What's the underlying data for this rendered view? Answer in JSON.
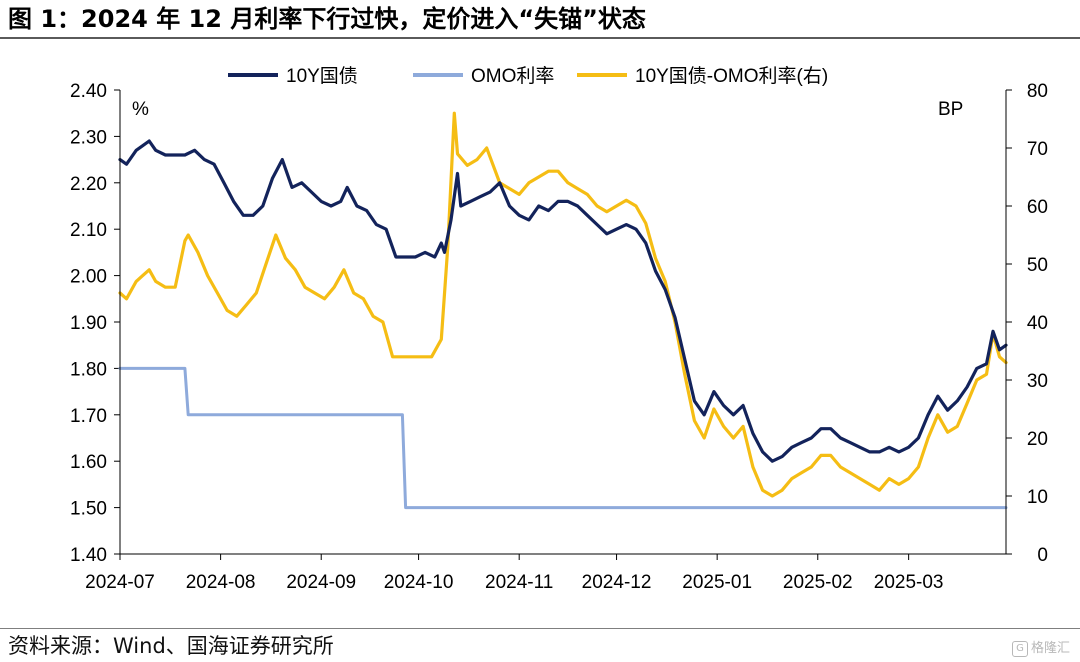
{
  "figure_title": "图 1：2024 年 12 月利率下行过快，定价进入“失锚”状态",
  "source_note": "资料来源：Wind、国海证券研究所",
  "watermark": "格隆汇",
  "colors": {
    "ten_year": "#13235b",
    "omo": "#8eaadb",
    "spread": "#f5bd14",
    "axis": "#000000"
  },
  "chart_data": {
    "type": "line",
    "title": "",
    "left_axis": {
      "unit_label": "%",
      "min": 1.4,
      "max": 2.4,
      "step": 0.1,
      "ticks": [
        "1.40",
        "1.50",
        "1.60",
        "1.70",
        "1.80",
        "1.90",
        "2.00",
        "2.10",
        "2.20",
        "2.30",
        "2.40"
      ]
    },
    "right_axis": {
      "unit_label": "BP",
      "min": 0,
      "max": 80,
      "step": 10,
      "ticks": [
        "0",
        "10",
        "20",
        "30",
        "40",
        "50",
        "60",
        "70",
        "80"
      ]
    },
    "x_axis": {
      "start": "2024-07-01",
      "end": "2025-03-31",
      "ticks": [
        {
          "label": "2024-07",
          "date": "2024-07-01"
        },
        {
          "label": "2024-08",
          "date": "2024-08-01"
        },
        {
          "label": "2024-09",
          "date": "2024-09-01"
        },
        {
          "label": "2024-10",
          "date": "2024-10-01"
        },
        {
          "label": "2024-11",
          "date": "2024-11-01"
        },
        {
          "label": "2024-12",
          "date": "2024-12-01"
        },
        {
          "label": "2025-01",
          "date": "2025-01-01"
        },
        {
          "label": "2025-02",
          "date": "2025-02-01"
        },
        {
          "label": "2025-03",
          "date": "2025-03-01"
        }
      ]
    },
    "legend_position": "top",
    "series": [
      {
        "name": "10Y国债",
        "axis": "left",
        "color": "#13235b",
        "points": [
          [
            "2024-07-01",
            2.25
          ],
          [
            "2024-07-03",
            2.24
          ],
          [
            "2024-07-06",
            2.27
          ],
          [
            "2024-07-08",
            2.28
          ],
          [
            "2024-07-10",
            2.29
          ],
          [
            "2024-07-12",
            2.27
          ],
          [
            "2024-07-15",
            2.26
          ],
          [
            "2024-07-18",
            2.26
          ],
          [
            "2024-07-21",
            2.26
          ],
          [
            "2024-07-24",
            2.27
          ],
          [
            "2024-07-27",
            2.25
          ],
          [
            "2024-07-30",
            2.24
          ],
          [
            "2024-08-02",
            2.2
          ],
          [
            "2024-08-05",
            2.16
          ],
          [
            "2024-08-08",
            2.13
          ],
          [
            "2024-08-11",
            2.13
          ],
          [
            "2024-08-14",
            2.15
          ],
          [
            "2024-08-17",
            2.21
          ],
          [
            "2024-08-20",
            2.25
          ],
          [
            "2024-08-23",
            2.19
          ],
          [
            "2024-08-26",
            2.2
          ],
          [
            "2024-08-29",
            2.18
          ],
          [
            "2024-09-01",
            2.16
          ],
          [
            "2024-09-04",
            2.15
          ],
          [
            "2024-09-07",
            2.16
          ],
          [
            "2024-09-09",
            2.19
          ],
          [
            "2024-09-12",
            2.15
          ],
          [
            "2024-09-15",
            2.14
          ],
          [
            "2024-09-18",
            2.11
          ],
          [
            "2024-09-21",
            2.1
          ],
          [
            "2024-09-24",
            2.04
          ],
          [
            "2024-09-27",
            2.04
          ],
          [
            "2024-09-30",
            2.04
          ],
          [
            "2024-10-03",
            2.05
          ],
          [
            "2024-10-06",
            2.04
          ],
          [
            "2024-10-08",
            2.07
          ],
          [
            "2024-10-09",
            2.05
          ],
          [
            "2024-10-11",
            2.12
          ],
          [
            "2024-10-13",
            2.22
          ],
          [
            "2024-10-14",
            2.15
          ],
          [
            "2024-10-17",
            2.16
          ],
          [
            "2024-10-20",
            2.17
          ],
          [
            "2024-10-23",
            2.18
          ],
          [
            "2024-10-26",
            2.2
          ],
          [
            "2024-10-29",
            2.15
          ],
          [
            "2024-11-01",
            2.13
          ],
          [
            "2024-11-04",
            2.12
          ],
          [
            "2024-11-07",
            2.15
          ],
          [
            "2024-11-10",
            2.14
          ],
          [
            "2024-11-13",
            2.16
          ],
          [
            "2024-11-16",
            2.16
          ],
          [
            "2024-11-19",
            2.15
          ],
          [
            "2024-11-22",
            2.13
          ],
          [
            "2024-11-25",
            2.11
          ],
          [
            "2024-11-28",
            2.09
          ],
          [
            "2024-12-01",
            2.1
          ],
          [
            "2024-12-04",
            2.11
          ],
          [
            "2024-12-07",
            2.1
          ],
          [
            "2024-12-10",
            2.07
          ],
          [
            "2024-12-13",
            2.01
          ],
          [
            "2024-12-16",
            1.97
          ],
          [
            "2024-12-19",
            1.91
          ],
          [
            "2024-12-22",
            1.82
          ],
          [
            "2024-12-25",
            1.73
          ],
          [
            "2024-12-28",
            1.7
          ],
          [
            "2024-12-31",
            1.75
          ],
          [
            "2025-01-03",
            1.72
          ],
          [
            "2025-01-06",
            1.7
          ],
          [
            "2025-01-09",
            1.72
          ],
          [
            "2025-01-12",
            1.66
          ],
          [
            "2025-01-15",
            1.62
          ],
          [
            "2025-01-18",
            1.6
          ],
          [
            "2025-01-21",
            1.61
          ],
          [
            "2025-01-24",
            1.63
          ],
          [
            "2025-01-27",
            1.64
          ],
          [
            "2025-01-30",
            1.65
          ],
          [
            "2025-02-02",
            1.67
          ],
          [
            "2025-02-05",
            1.67
          ],
          [
            "2025-02-08",
            1.65
          ],
          [
            "2025-02-11",
            1.64
          ],
          [
            "2025-02-14",
            1.63
          ],
          [
            "2025-02-17",
            1.62
          ],
          [
            "2025-02-20",
            1.62
          ],
          [
            "2025-02-23",
            1.63
          ],
          [
            "2025-02-26",
            1.62
          ],
          [
            "2025-03-01",
            1.63
          ],
          [
            "2025-03-04",
            1.65
          ],
          [
            "2025-03-07",
            1.7
          ],
          [
            "2025-03-10",
            1.74
          ],
          [
            "2025-03-13",
            1.71
          ],
          [
            "2025-03-16",
            1.73
          ],
          [
            "2025-03-19",
            1.76
          ],
          [
            "2025-03-22",
            1.8
          ],
          [
            "2025-03-25",
            1.81
          ],
          [
            "2025-03-27",
            1.88
          ],
          [
            "2025-03-29",
            1.84
          ],
          [
            "2025-03-31",
            1.85
          ]
        ]
      },
      {
        "name": "OMO利率",
        "axis": "left",
        "color": "#8eaadb",
        "points": [
          [
            "2024-07-01",
            1.8
          ],
          [
            "2024-07-21",
            1.8
          ],
          [
            "2024-07-22",
            1.7
          ],
          [
            "2024-09-26",
            1.7
          ],
          [
            "2024-09-27",
            1.5
          ],
          [
            "2025-03-31",
            1.5
          ]
        ]
      },
      {
        "name": "10Y国债-OMO利率(右)",
        "axis": "right",
        "color": "#f5bd14",
        "points": [
          [
            "2024-07-01",
            45
          ],
          [
            "2024-07-03",
            44
          ],
          [
            "2024-07-06",
            47
          ],
          [
            "2024-07-08",
            48
          ],
          [
            "2024-07-10",
            49
          ],
          [
            "2024-07-12",
            47
          ],
          [
            "2024-07-15",
            46
          ],
          [
            "2024-07-18",
            46
          ],
          [
            "2024-07-21",
            54
          ],
          [
            "2024-07-22",
            55
          ],
          [
            "2024-07-25",
            52
          ],
          [
            "2024-07-28",
            48
          ],
          [
            "2024-07-31",
            45
          ],
          [
            "2024-08-03",
            42
          ],
          [
            "2024-08-06",
            41
          ],
          [
            "2024-08-09",
            43
          ],
          [
            "2024-08-12",
            45
          ],
          [
            "2024-08-15",
            50
          ],
          [
            "2024-08-18",
            55
          ],
          [
            "2024-08-21",
            51
          ],
          [
            "2024-08-24",
            49
          ],
          [
            "2024-08-27",
            46
          ],
          [
            "2024-08-30",
            45
          ],
          [
            "2024-09-02",
            44
          ],
          [
            "2024-09-05",
            46
          ],
          [
            "2024-09-08",
            49
          ],
          [
            "2024-09-11",
            45
          ],
          [
            "2024-09-14",
            44
          ],
          [
            "2024-09-17",
            41
          ],
          [
            "2024-09-20",
            40
          ],
          [
            "2024-09-23",
            34
          ],
          [
            "2024-09-26",
            34
          ],
          [
            "2024-09-29",
            34
          ],
          [
            "2024-10-02",
            34
          ],
          [
            "2024-10-05",
            34
          ],
          [
            "2024-10-08",
            37
          ],
          [
            "2024-10-10",
            53
          ],
          [
            "2024-10-12",
            76
          ],
          [
            "2024-10-13",
            69
          ],
          [
            "2024-10-16",
            67
          ],
          [
            "2024-10-19",
            68
          ],
          [
            "2024-10-22",
            70
          ],
          [
            "2024-10-26",
            64
          ],
          [
            "2024-10-29",
            63
          ],
          [
            "2024-11-01",
            62
          ],
          [
            "2024-11-04",
            64
          ],
          [
            "2024-11-07",
            65
          ],
          [
            "2024-11-10",
            66
          ],
          [
            "2024-11-13",
            66
          ],
          [
            "2024-11-16",
            64
          ],
          [
            "2024-11-19",
            63
          ],
          [
            "2024-11-22",
            62
          ],
          [
            "2024-11-25",
            60
          ],
          [
            "2024-11-28",
            59
          ],
          [
            "2024-12-01",
            60
          ],
          [
            "2024-12-04",
            61
          ],
          [
            "2024-12-07",
            60
          ],
          [
            "2024-12-10",
            57
          ],
          [
            "2024-12-13",
            51
          ],
          [
            "2024-12-16",
            47
          ],
          [
            "2024-12-19",
            40
          ],
          [
            "2024-12-22",
            31
          ],
          [
            "2024-12-25",
            23
          ],
          [
            "2024-12-28",
            20
          ],
          [
            "2024-12-31",
            25
          ],
          [
            "2025-01-03",
            22
          ],
          [
            "2025-01-06",
            20
          ],
          [
            "2025-01-09",
            22
          ],
          [
            "2025-01-12",
            15
          ],
          [
            "2025-01-15",
            11
          ],
          [
            "2025-01-18",
            10
          ],
          [
            "2025-01-21",
            11
          ],
          [
            "2025-01-24",
            13
          ],
          [
            "2025-01-27",
            14
          ],
          [
            "2025-01-30",
            15
          ],
          [
            "2025-02-02",
            17
          ],
          [
            "2025-02-05",
            17
          ],
          [
            "2025-02-08",
            15
          ],
          [
            "2025-02-11",
            14
          ],
          [
            "2025-02-14",
            13
          ],
          [
            "2025-02-17",
            12
          ],
          [
            "2025-02-20",
            11
          ],
          [
            "2025-02-23",
            13
          ],
          [
            "2025-02-26",
            12
          ],
          [
            "2025-03-01",
            13
          ],
          [
            "2025-03-04",
            15
          ],
          [
            "2025-03-07",
            20
          ],
          [
            "2025-03-10",
            24
          ],
          [
            "2025-03-13",
            21
          ],
          [
            "2025-03-16",
            22
          ],
          [
            "2025-03-19",
            26
          ],
          [
            "2025-03-22",
            30
          ],
          [
            "2025-03-25",
            31
          ],
          [
            "2025-03-27",
            38
          ],
          [
            "2025-03-29",
            34
          ],
          [
            "2025-03-31",
            33
          ]
        ]
      }
    ]
  }
}
